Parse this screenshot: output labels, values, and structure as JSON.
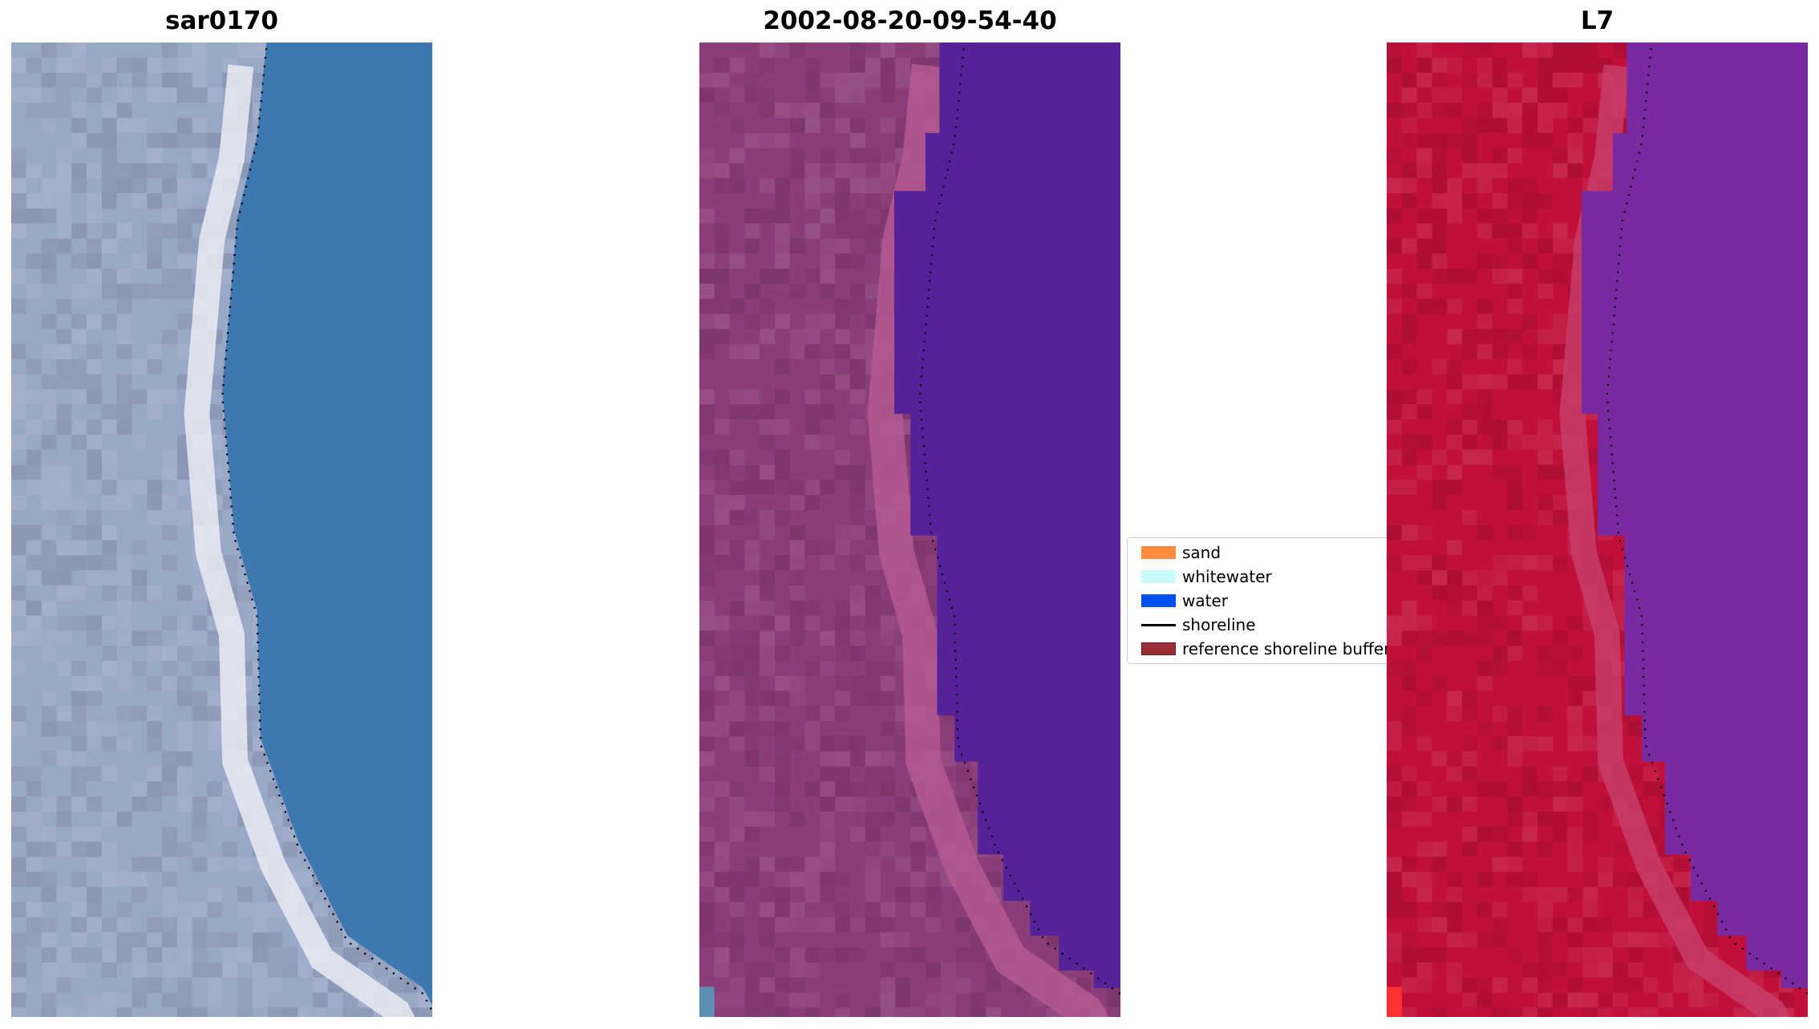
{
  "panels": [
    {
      "title": "sar0170",
      "land_color": "#9aa8c8",
      "water_color": "#3e78b0"
    },
    {
      "title": "2002-08-20-09-54-40",
      "land_color": "#8a3d78",
      "water_color": "#55229a"
    },
    {
      "title": "L7",
      "land_color": "#c0103a",
      "water_color": "#7a2aa0"
    }
  ],
  "legend": {
    "items": [
      {
        "label": "sand",
        "color": "#ff8c3c"
      },
      {
        "label": "whitewater",
        "color": "#c8fafa"
      },
      {
        "label": "water",
        "color": "#0050f0"
      },
      {
        "label": "shoreline",
        "color": "#000000"
      },
      {
        "label": "reference shoreline buffer",
        "color": "#9b2d37"
      }
    ]
  }
}
